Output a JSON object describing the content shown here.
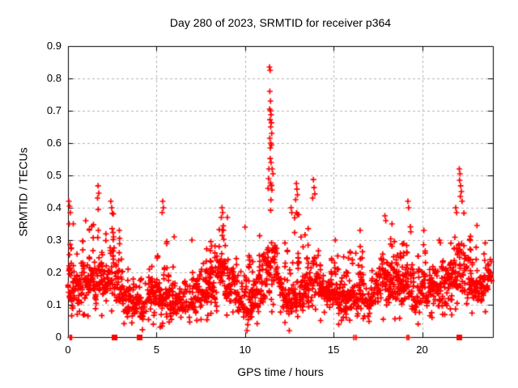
{
  "chart_data": {
    "type": "scatter",
    "title": "Day 280 of 2023, SRMTID for receiver p364",
    "xlabel": "GPS time / hours",
    "ylabel": "SRMTID / TECUs",
    "xlim": [
      0,
      24
    ],
    "ylim": [
      0,
      0.9
    ],
    "x_ticks": [
      0,
      5,
      10,
      15,
      20
    ],
    "x_tick_labels": [
      "0",
      "5",
      "10",
      "15",
      "20"
    ],
    "y_ticks": [
      0,
      0.1,
      0.2,
      0.3,
      0.4,
      0.5,
      0.6,
      0.7,
      0.8,
      0.9
    ],
    "y_tick_labels": [
      "0",
      "0.1",
      "0.2",
      "0.3",
      "0.4",
      "0.5",
      "0.6",
      "0.7",
      "0.8",
      "0.9"
    ],
    "grid": true,
    "legend": "none",
    "marker": "plus",
    "colors": {
      "marker": "#ff0000",
      "grid": "#b4b4b4",
      "axis": "#000000",
      "background": "#ffffff"
    },
    "series_name": "SRMTID",
    "band_envelope": [
      [
        0.0,
        0.1,
        0.3
      ],
      [
        0.3,
        0.1,
        0.28
      ],
      [
        0.6,
        0.11,
        0.26
      ],
      [
        1.0,
        0.12,
        0.33
      ],
      [
        1.4,
        0.1,
        0.36
      ],
      [
        1.74,
        0.12,
        0.42
      ],
      [
        2.1,
        0.1,
        0.32
      ],
      [
        2.45,
        0.12,
        0.4
      ],
      [
        2.8,
        0.1,
        0.34
      ],
      [
        3.1,
        0.09,
        0.26
      ],
      [
        3.5,
        0.08,
        0.2
      ],
      [
        3.9,
        0.06,
        0.17
      ],
      [
        4.3,
        0.07,
        0.19
      ],
      [
        4.7,
        0.08,
        0.22
      ],
      [
        5.1,
        0.08,
        0.26
      ],
      [
        5.4,
        0.08,
        0.34
      ],
      [
        5.7,
        0.08,
        0.28
      ],
      [
        6.1,
        0.06,
        0.2
      ],
      [
        6.5,
        0.07,
        0.17
      ],
      [
        6.9,
        0.08,
        0.2
      ],
      [
        7.3,
        0.09,
        0.24
      ],
      [
        7.7,
        0.1,
        0.28
      ],
      [
        8.1,
        0.1,
        0.31
      ],
      [
        8.5,
        0.11,
        0.36
      ],
      [
        8.9,
        0.11,
        0.34
      ],
      [
        9.3,
        0.1,
        0.31
      ],
      [
        9.7,
        0.05,
        0.3
      ],
      [
        10.0,
        0.04,
        0.28
      ],
      [
        10.4,
        0.05,
        0.27
      ],
      [
        10.8,
        0.09,
        0.32
      ],
      [
        11.1,
        0.11,
        0.38
      ],
      [
        11.4,
        0.12,
        0.5
      ],
      [
        11.7,
        0.11,
        0.42
      ],
      [
        12.0,
        0.09,
        0.34
      ],
      [
        12.4,
        0.04,
        0.28
      ],
      [
        12.7,
        0.06,
        0.36
      ],
      [
        12.95,
        0.08,
        0.42
      ],
      [
        13.2,
        0.08,
        0.3
      ],
      [
        13.6,
        0.09,
        0.34
      ],
      [
        13.9,
        0.1,
        0.42
      ],
      [
        14.2,
        0.1,
        0.33
      ],
      [
        14.6,
        0.1,
        0.3
      ],
      [
        15.0,
        0.1,
        0.28
      ],
      [
        15.4,
        0.08,
        0.24
      ],
      [
        15.8,
        0.08,
        0.26
      ],
      [
        16.2,
        0.09,
        0.28
      ],
      [
        16.6,
        0.1,
        0.3
      ],
      [
        16.9,
        0.05,
        0.22
      ],
      [
        17.2,
        0.08,
        0.26
      ],
      [
        17.8,
        0.1,
        0.34
      ],
      [
        18.2,
        0.1,
        0.32
      ],
      [
        18.6,
        0.1,
        0.28
      ],
      [
        19.0,
        0.11,
        0.33
      ],
      [
        19.25,
        0.1,
        0.37
      ],
      [
        19.6,
        0.08,
        0.28
      ],
      [
        20.0,
        0.1,
        0.3
      ],
      [
        20.4,
        0.1,
        0.28
      ],
      [
        20.8,
        0.11,
        0.3
      ],
      [
        21.2,
        0.11,
        0.32
      ],
      [
        21.6,
        0.11,
        0.34
      ],
      [
        21.95,
        0.14,
        0.38
      ],
      [
        22.15,
        0.15,
        0.44
      ],
      [
        22.5,
        0.12,
        0.37
      ],
      [
        22.9,
        0.12,
        0.32
      ],
      [
        23.3,
        0.11,
        0.3
      ],
      [
        23.7,
        0.13,
        0.3
      ],
      [
        23.9,
        0.13,
        0.28
      ]
    ],
    "spike_points": [
      [
        11.38,
        0.835
      ],
      [
        11.42,
        0.825
      ],
      [
        11.4,
        0.76
      ],
      [
        11.44,
        0.73
      ],
      [
        11.39,
        0.705
      ],
      [
        11.44,
        0.7
      ],
      [
        11.47,
        0.688
      ],
      [
        11.41,
        0.672
      ],
      [
        11.49,
        0.663
      ],
      [
        11.45,
        0.65
      ],
      [
        11.51,
        0.63
      ],
      [
        11.4,
        0.615
      ],
      [
        11.45,
        0.6
      ],
      [
        11.49,
        0.594
      ],
      [
        11.43,
        0.585
      ],
      [
        11.42,
        0.552
      ],
      [
        11.47,
        0.54
      ],
      [
        11.53,
        0.52
      ],
      [
        11.58,
        0.505
      ],
      [
        11.35,
        0.52
      ],
      [
        11.33,
        0.49
      ],
      [
        11.3,
        0.46
      ],
      [
        11.48,
        0.47
      ],
      [
        11.52,
        0.455
      ],
      [
        12.9,
        0.475
      ],
      [
        12.93,
        0.458
      ],
      [
        12.96,
        0.44
      ],
      [
        12.86,
        0.425
      ],
      [
        13.86,
        0.487
      ],
      [
        13.9,
        0.462
      ],
      [
        13.94,
        0.443
      ],
      [
        13.82,
        0.43
      ],
      [
        1.7,
        0.468
      ],
      [
        1.74,
        0.445
      ],
      [
        1.67,
        0.43
      ],
      [
        5.35,
        0.42
      ],
      [
        5.39,
        0.4
      ],
      [
        5.32,
        0.385
      ],
      [
        8.7,
        0.4
      ],
      [
        8.74,
        0.385
      ],
      [
        8.66,
        0.37
      ],
      [
        0.05,
        0.42
      ],
      [
        0.09,
        0.405
      ],
      [
        0.13,
        0.385
      ],
      [
        0.07,
        0.35
      ],
      [
        2.42,
        0.42
      ],
      [
        2.47,
        0.4
      ],
      [
        2.9,
        0.33
      ],
      [
        19.2,
        0.42
      ],
      [
        19.24,
        0.4
      ],
      [
        21.9,
        0.4
      ],
      [
        21.95,
        0.385
      ],
      [
        22.1,
        0.52
      ],
      [
        22.14,
        0.505
      ],
      [
        22.12,
        0.485
      ],
      [
        22.18,
        0.468
      ],
      [
        22.22,
        0.45
      ],
      [
        22.16,
        0.435
      ],
      [
        22.26,
        0.42
      ],
      [
        0.3,
        0.35
      ],
      [
        1.0,
        0.36
      ],
      [
        9.0,
        0.37
      ],
      [
        10.0,
        0.34
      ],
      [
        12.6,
        0.4
      ],
      [
        12.64,
        0.385
      ],
      [
        17.9,
        0.375
      ],
      [
        17.95,
        0.36
      ],
      [
        16.5,
        0.33
      ],
      [
        20.1,
        0.33
      ],
      [
        23.1,
        0.345
      ],
      [
        18.3,
        0.35
      ],
      [
        15.1,
        0.3
      ],
      [
        6.0,
        0.31
      ],
      [
        7.0,
        0.3
      ]
    ],
    "zero_axis_markers": {
      "squares_t": [
        2.6,
        4.0,
        22.1
      ],
      "plus_pairs_t": [
        [
          0.12,
          0.2
        ],
        [
          16.15,
          16.27
        ],
        [
          19.15,
          19.25
        ]
      ]
    },
    "generation": {
      "seed": 280,
      "t_start": 0.02,
      "t_end": 23.9,
      "step_hours": 0.04,
      "y_min_clamp": 0.02
    }
  }
}
